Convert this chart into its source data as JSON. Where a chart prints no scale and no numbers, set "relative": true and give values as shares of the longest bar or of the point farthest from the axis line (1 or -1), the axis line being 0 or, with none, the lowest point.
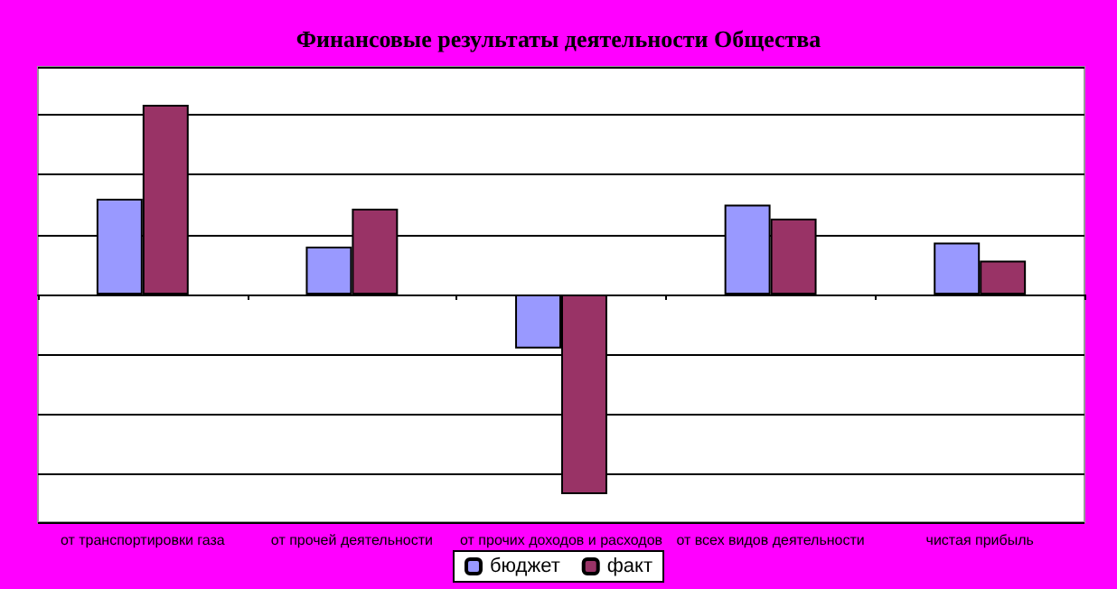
{
  "chart_data": {
    "type": "bar",
    "title": "Финансовые результаты деятельности Общества",
    "categories": [
      "от транспортировки газа",
      "от прочей деятельности",
      "от прочих доходов и расходов",
      "от всех видов деятельности",
      "чистая прибыль"
    ],
    "series": [
      {
        "name": "бюджет",
        "color": "#9999ff",
        "values": [
          0.48,
          0.24,
          -0.27,
          0.45,
          0.26
        ]
      },
      {
        "name": "факт",
        "color": "#993366",
        "values": [
          0.95,
          0.43,
          -1,
          0.38,
          0.17
        ]
      }
    ],
    "relative": true,
    "grid": "y",
    "legend": "bottom"
  }
}
